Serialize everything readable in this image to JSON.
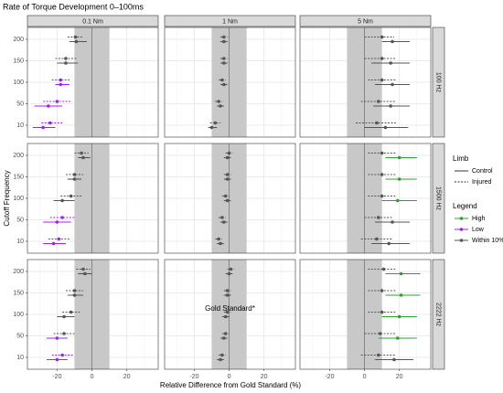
{
  "chart_data": {
    "type": "forest",
    "title": "Rate of Torque Development 0–100ms",
    "x_label": "Relative Difference from Gold Standard (%)",
    "y_label": "Cutoff Frequency",
    "columns": [
      "0.1 Nm",
      "1 Nm",
      "5 Nm"
    ],
    "rows": [
      "100 Hz",
      "1500 Hz",
      "2222 Hz"
    ],
    "categories": [
      10,
      50,
      100,
      150,
      200
    ],
    "xlim": [
      -37,
      38
    ],
    "xticks": [
      -20,
      0,
      20
    ],
    "minor_xticks": [
      -30,
      -10,
      10,
      30
    ],
    "band": [
      -10,
      10
    ],
    "reference_line": 0,
    "grid": true,
    "limb_legend": {
      "title": "Limb",
      "items": [
        {
          "name": "Control",
          "dash": "solid"
        },
        {
          "name": "Injured",
          "dash": "dotted"
        }
      ]
    },
    "color_legend": {
      "title": "Legend",
      "items": [
        {
          "name": "High",
          "color": "#2ca02c"
        },
        {
          "name": "Low",
          "color": "#a020f0"
        },
        {
          "name": "Within 10%",
          "color": "#555555"
        }
      ]
    },
    "panels": [
      [
        {
          "series": [
            {
              "dash": "solid",
              "values": [
                -28,
                -25,
                -18,
                -15,
                -9
              ],
              "lower": [
                -34,
                -33,
                -21,
                -20,
                -13
              ],
              "upper": [
                -21,
                -17,
                -13,
                -8,
                -3
              ],
              "colors": [
                "#a020f0",
                "#a020f0",
                "#a020f0",
                "#555555",
                "#555555"
              ]
            },
            {
              "dash": "dotted",
              "values": [
                -24,
                -20,
                -18,
                -15,
                -9.5
              ],
              "lower": [
                -29,
                -28,
                -23,
                -21,
                -14
              ],
              "upper": [
                -17,
                -12,
                -12,
                -9,
                -5
              ],
              "colors": [
                "#a020f0",
                "#a020f0",
                "#a020f0",
                "#555555",
                "#555555"
              ]
            }
          ]
        },
        {
          "series": [
            {
              "dash": "solid",
              "values": [
                -10,
                -5,
                -3,
                -3,
                -3
              ],
              "lower": [
                -12,
                -7,
                -5,
                -5,
                -5
              ],
              "upper": [
                -7,
                -3,
                -1,
                -1,
                -1
              ],
              "colors": [
                "#555555",
                "#555555",
                "#555555",
                "#555555",
                "#555555"
              ]
            },
            {
              "dash": "dotted",
              "values": [
                -8,
                -6,
                -4,
                -3,
                -3
              ],
              "lower": [
                -11,
                -8,
                -6,
                -5,
                -5
              ],
              "upper": [
                -5,
                -4,
                -2,
                -1,
                -1
              ],
              "colors": [
                "#555555",
                "#555555",
                "#555555",
                "#555555",
                "#555555"
              ]
            }
          ]
        },
        {
          "series": [
            {
              "dash": "solid",
              "values": [
                12,
                15,
                16,
                15,
                16
              ],
              "lower": [
                0,
                5,
                6,
                4,
                10
              ],
              "upper": [
                25,
                26,
                26,
                26,
                26
              ],
              "colors": [
                "#555555",
                "#555555",
                "#555555",
                "#555555",
                "#555555"
              ]
            },
            {
              "dash": "dotted",
              "values": [
                7,
                8,
                10,
                10,
                10
              ],
              "lower": [
                -5,
                -2,
                2,
                0,
                0
              ],
              "upper": [
                18,
                18,
                18,
                18,
                17
              ],
              "colors": [
                "#555555",
                "#555555",
                "#555555",
                "#555555",
                "#555555"
              ]
            }
          ]
        }
      ],
      [
        {
          "series": [
            {
              "dash": "solid",
              "values": [
                -22,
                -20,
                -17,
                -10,
                -5
              ],
              "lower": [
                -28,
                -28,
                -22,
                -14,
                -8
              ],
              "upper": [
                -15,
                -12,
                -10,
                -6,
                -1
              ],
              "colors": [
                "#a020f0",
                "#a020f0",
                "#555555",
                "#555555",
                "#555555"
              ]
            },
            {
              "dash": "dotted",
              "values": [
                -19,
                -17,
                -12,
                -10,
                -6
              ],
              "lower": [
                -25,
                -24,
                -18,
                -15,
                -10
              ],
              "upper": [
                -13,
                -10,
                -6,
                -5,
                -2
              ],
              "colors": [
                "#a020f0",
                "#a020f0",
                "#555555",
                "#555555",
                "#555555"
              ]
            }
          ]
        },
        {
          "series": [
            {
              "dash": "solid",
              "values": [
                -5,
                -3,
                -1,
                -1,
                -1
              ],
              "lower": [
                -7,
                -5,
                -3,
                -3,
                -3
              ],
              "upper": [
                -3,
                -1,
                1,
                1,
                1
              ],
              "colors": [
                "#555555",
                "#555555",
                "#555555",
                "#555555",
                "#555555"
              ]
            },
            {
              "dash": "dotted",
              "values": [
                -6,
                -4,
                -2,
                -1,
                0
              ],
              "lower": [
                -8,
                -6,
                -4,
                -3,
                -2
              ],
              "upper": [
                -4,
                -2,
                0,
                1,
                2
              ],
              "colors": [
                "#555555",
                "#555555",
                "#555555",
                "#555555",
                "#555555"
              ]
            }
          ]
        },
        {
          "series": [
            {
              "dash": "solid",
              "values": [
                14,
                16,
                19,
                20,
                20
              ],
              "lower": [
                4,
                6,
                10,
                12,
                12
              ],
              "upper": [
                26,
                26,
                30,
                30,
                30
              ],
              "colors": [
                "#555555",
                "#555555",
                "#2ca02c",
                "#2ca02c",
                "#2ca02c"
              ]
            },
            {
              "dash": "dotted",
              "values": [
                7,
                8,
                10,
                10,
                10
              ],
              "lower": [
                -2,
                0,
                2,
                2,
                2
              ],
              "upper": [
                16,
                16,
                18,
                18,
                18
              ],
              "colors": [
                "#555555",
                "#555555",
                "#555555",
                "#555555",
                "#555555"
              ]
            }
          ]
        }
      ],
      [
        {
          "series": [
            {
              "dash": "solid",
              "values": [
                -20,
                -20,
                -16,
                -10,
                -4
              ],
              "lower": [
                -26,
                -26,
                -20,
                -14,
                -8
              ],
              "upper": [
                -14,
                -14,
                -10,
                -5,
                0
              ],
              "colors": [
                "#a020f0",
                "#a020f0",
                "#555555",
                "#555555",
                "#555555"
              ]
            },
            {
              "dash": "dotted",
              "values": [
                -17,
                -16,
                -12,
                -10,
                -5
              ],
              "lower": [
                -23,
                -22,
                -17,
                -15,
                -9
              ],
              "upper": [
                -11,
                -10,
                -7,
                -5,
                -1
              ],
              "colors": [
                "#a020f0",
                "#555555",
                "#555555",
                "#555555",
                "#555555"
              ]
            }
          ]
        },
        {
          "annotation": "Gold Standard*",
          "series": [
            {
              "dash": "solid",
              "values": [
                -5,
                -3,
                -2,
                -1,
                0
              ],
              "lower": [
                -7,
                -5,
                -4,
                -3,
                -2
              ],
              "upper": [
                -3,
                -1,
                0,
                1,
                2
              ],
              "colors": [
                "#555555",
                "#555555",
                "#555555",
                "#555555",
                "#555555"
              ]
            },
            {
              "dash": "dotted",
              "values": [
                -4,
                -2,
                -1,
                -1,
                1
              ],
              "lower": [
                -6,
                -4,
                -3,
                -3,
                -1
              ],
              "upper": [
                -2,
                0,
                1,
                1,
                3
              ],
              "colors": [
                "#555555",
                "#555555",
                "#555555",
                "#555555",
                "#555555"
              ]
            }
          ]
        },
        {
          "series": [
            {
              "dash": "solid",
              "values": [
                17,
                19,
                20,
                21,
                21
              ],
              "lower": [
                6,
                8,
                10,
                12,
                12
              ],
              "upper": [
                28,
                30,
                30,
                32,
                32
              ],
              "colors": [
                "#555555",
                "#2ca02c",
                "#2ca02c",
                "#2ca02c",
                "#2ca02c"
              ]
            },
            {
              "dash": "dotted",
              "values": [
                8,
                9,
                10,
                10,
                11
              ],
              "lower": [
                -2,
                0,
                2,
                2,
                2
              ],
              "upper": [
                18,
                18,
                18,
                18,
                18
              ],
              "colors": [
                "#555555",
                "#555555",
                "#555555",
                "#555555",
                "#555555"
              ]
            }
          ]
        }
      ]
    ]
  }
}
